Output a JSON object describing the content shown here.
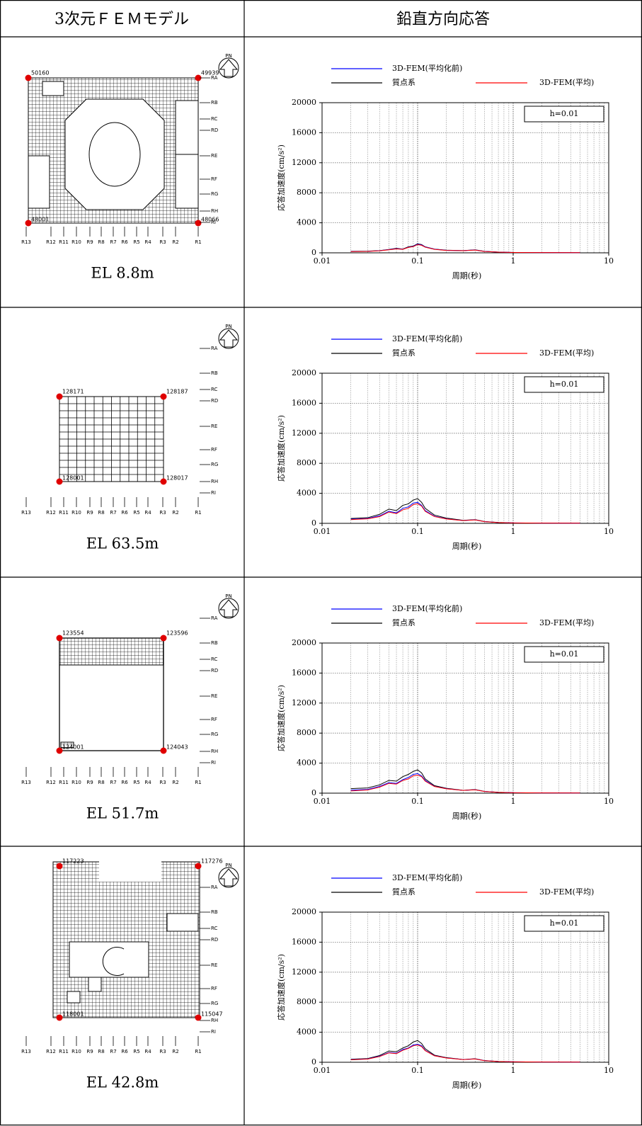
{
  "header": {
    "model": "3次元ＦＥＭモデル",
    "response": "鉛直方向応答"
  },
  "model_labels": {
    "north": "PN",
    "rows": [
      "RA",
      "RB",
      "RC",
      "RD",
      "RE",
      "RF",
      "RG",
      "RH",
      "RI"
    ],
    "columns": [
      "R13",
      "R12",
      "R11",
      "R10",
      "R9",
      "R8",
      "R7",
      "R6",
      "R5",
      "R4",
      "R3",
      "R2",
      "R1"
    ]
  },
  "models": [
    {
      "nodes": [
        "50160",
        "49939",
        "48001",
        "48066"
      ],
      "elevation": "EL 8.8m"
    },
    {
      "nodes": [
        "128171",
        "128187",
        "128001",
        "128017"
      ],
      "elevation": "EL 63.5m"
    },
    {
      "nodes": [
        "123554",
        "123596",
        "124001",
        "124043"
      ],
      "elevation": "EL 51.7m"
    },
    {
      "nodes": [
        "117223",
        "117276",
        "118001",
        "115047"
      ],
      "elevation": "EL 42.8m"
    }
  ],
  "chart_data": [
    {
      "type": "line",
      "log_x": true,
      "grid": true,
      "annotation": "h=0.01",
      "xlabel": "周期(秒)",
      "ylabel": "応答加速度(cm/s²)",
      "xlim": [
        0.01,
        10
      ],
      "ylim": [
        0,
        20000
      ],
      "xticks": [
        0.01,
        0.1,
        1,
        10
      ],
      "yticks": [
        0,
        4000,
        8000,
        12000,
        16000,
        20000
      ],
      "xminor": [
        0.02,
        0.03,
        0.04,
        0.05,
        0.06,
        0.07,
        0.08,
        0.09,
        0.2,
        0.3,
        0.4,
        0.5,
        0.6,
        0.7,
        0.8,
        0.9,
        2,
        3,
        4,
        5,
        6,
        7,
        8,
        9
      ],
      "x": [
        0.02,
        0.03,
        0.04,
        0.05,
        0.06,
        0.07,
        0.08,
        0.09,
        0.1,
        0.11,
        0.12,
        0.15,
        0.2,
        0.3,
        0.4,
        0.5,
        0.7,
        1,
        2,
        5
      ],
      "series": [
        {
          "name": "3D-FEM(平均化前)",
          "color": "#0000ff",
          "values": [
            180,
            200,
            280,
            420,
            550,
            480,
            750,
            850,
            1150,
            1050,
            780,
            480,
            330,
            290,
            380,
            190,
            90,
            50,
            30,
            20
          ]
        },
        {
          "name": "質点系",
          "color": "#000000",
          "values": [
            200,
            220,
            300,
            450,
            600,
            500,
            800,
            900,
            1200,
            1100,
            800,
            500,
            350,
            300,
            400,
            200,
            100,
            50,
            30,
            20
          ]
        },
        {
          "name": "3D-FEM(平均)",
          "color": "#ff0000",
          "values": [
            170,
            190,
            270,
            400,
            520,
            460,
            720,
            820,
            1100,
            1000,
            750,
            460,
            320,
            280,
            370,
            180,
            90,
            50,
            30,
            20
          ]
        }
      ]
    },
    {
      "type": "line",
      "log_x": true,
      "grid": true,
      "annotation": "h=0.01",
      "xlabel": "周期(秒)",
      "ylabel": "応答加速度(cm/s²)",
      "xlim": [
        0.01,
        10
      ],
      "ylim": [
        0,
        20000
      ],
      "xticks": [
        0.01,
        0.1,
        1,
        10
      ],
      "yticks": [
        0,
        4000,
        8000,
        12000,
        16000,
        20000
      ],
      "xminor": [
        0.02,
        0.03,
        0.04,
        0.05,
        0.06,
        0.07,
        0.08,
        0.09,
        0.2,
        0.3,
        0.4,
        0.5,
        0.6,
        0.7,
        0.8,
        0.9,
        2,
        3,
        4,
        5,
        6,
        7,
        8,
        9
      ],
      "x": [
        0.02,
        0.03,
        0.04,
        0.05,
        0.06,
        0.07,
        0.08,
        0.09,
        0.1,
        0.11,
        0.12,
        0.15,
        0.2,
        0.3,
        0.4,
        0.5,
        0.7,
        1,
        2,
        5
      ],
      "series": [
        {
          "name": "3D-FEM(平均化前)",
          "color": "#0000ff",
          "values": [
            550,
            650,
            1000,
            1600,
            1400,
            2000,
            2200,
            2700,
            2800,
            2400,
            1700,
            950,
            600,
            380,
            470,
            230,
            110,
            55,
            30,
            20
          ]
        },
        {
          "name": "質点系",
          "color": "#000000",
          "values": [
            650,
            750,
            1200,
            1900,
            1700,
            2400,
            2600,
            3100,
            3300,
            2800,
            2000,
            1100,
            700,
            400,
            500,
            250,
            120,
            60,
            30,
            20
          ]
        },
        {
          "name": "3D-FEM(平均)",
          "color": "#ff0000",
          "values": [
            500,
            600,
            900,
            1500,
            1300,
            1800,
            2000,
            2500,
            2600,
            2300,
            1600,
            900,
            580,
            370,
            460,
            220,
            110,
            55,
            30,
            20
          ]
        }
      ]
    },
    {
      "type": "line",
      "log_x": true,
      "grid": true,
      "annotation": "h=0.01",
      "xlabel": "周期(秒)",
      "ylabel": "応答加速度(cm/s²)",
      "xlim": [
        0.01,
        10
      ],
      "ylim": [
        0,
        20000
      ],
      "xticks": [
        0.01,
        0.1,
        1,
        10
      ],
      "yticks": [
        0,
        4000,
        8000,
        12000,
        16000,
        20000
      ],
      "xminor": [
        0.02,
        0.03,
        0.04,
        0.05,
        0.06,
        0.07,
        0.08,
        0.09,
        0.2,
        0.3,
        0.4,
        0.5,
        0.6,
        0.7,
        0.8,
        0.9,
        2,
        3,
        4,
        5,
        6,
        7,
        8,
        9
      ],
      "x": [
        0.02,
        0.03,
        0.04,
        0.05,
        0.06,
        0.07,
        0.08,
        0.09,
        0.1,
        0.11,
        0.12,
        0.15,
        0.2,
        0.3,
        0.4,
        0.5,
        0.7,
        1,
        2,
        5
      ],
      "series": [
        {
          "name": "3D-FEM(平均化前)",
          "color": "#0000ff",
          "values": [
            400,
            500,
            900,
            1400,
            1300,
            1800,
            2100,
            2500,
            2600,
            2300,
            1700,
            900,
            600,
            370,
            460,
            230,
            110,
            55,
            30,
            20
          ]
        },
        {
          "name": "質点系",
          "color": "#000000",
          "values": [
            600,
            700,
            1100,
            1700,
            1600,
            2200,
            2500,
            2900,
            3100,
            2700,
            1900,
            1000,
            650,
            380,
            480,
            240,
            120,
            60,
            30,
            20
          ]
        },
        {
          "name": "3D-FEM(平均)",
          "color": "#ff0000",
          "values": [
            300,
            420,
            800,
            1300,
            1200,
            1700,
            1900,
            2300,
            2400,
            2200,
            1600,
            880,
            580,
            360,
            450,
            220,
            110,
            55,
            30,
            20
          ]
        }
      ]
    },
    {
      "type": "line",
      "log_x": true,
      "grid": true,
      "annotation": "h=0.01",
      "xlabel": "周期(秒)",
      "ylabel": "応答加速度(cm/s²)",
      "xlim": [
        0.01,
        10
      ],
      "ylim": [
        0,
        20000
      ],
      "xticks": [
        0.01,
        0.1,
        1,
        10
      ],
      "yticks": [
        0,
        4000,
        8000,
        12000,
        16000,
        20000
      ],
      "xminor": [
        0.02,
        0.03,
        0.04,
        0.05,
        0.06,
        0.07,
        0.08,
        0.09,
        0.2,
        0.3,
        0.4,
        0.5,
        0.6,
        0.7,
        0.8,
        0.9,
        2,
        3,
        4,
        5,
        6,
        7,
        8,
        9
      ],
      "x": [
        0.02,
        0.03,
        0.04,
        0.05,
        0.06,
        0.07,
        0.08,
        0.09,
        0.1,
        0.11,
        0.12,
        0.15,
        0.2,
        0.3,
        0.4,
        0.5,
        0.7,
        1,
        2,
        5
      ],
      "series": [
        {
          "name": "3D-FEM(平均化前)",
          "color": "#0000ff",
          "values": [
            350,
            450,
            800,
            1300,
            1200,
            1700,
            1900,
            2300,
            2400,
            2200,
            1600,
            880,
            580,
            360,
            450,
            220,
            110,
            55,
            30,
            20
          ]
        },
        {
          "name": "質点系",
          "color": "#000000",
          "values": [
            400,
            500,
            900,
            1500,
            1400,
            1900,
            2200,
            2700,
            2900,
            2500,
            1800,
            950,
            620,
            370,
            470,
            230,
            110,
            60,
            30,
            20
          ]
        },
        {
          "name": "3D-FEM(平均)",
          "color": "#ff0000",
          "values": [
            330,
            420,
            760,
            1250,
            1150,
            1600,
            1850,
            2200,
            2300,
            2100,
            1550,
            860,
            570,
            350,
            440,
            210,
            110,
            55,
            30,
            20
          ]
        }
      ]
    }
  ]
}
